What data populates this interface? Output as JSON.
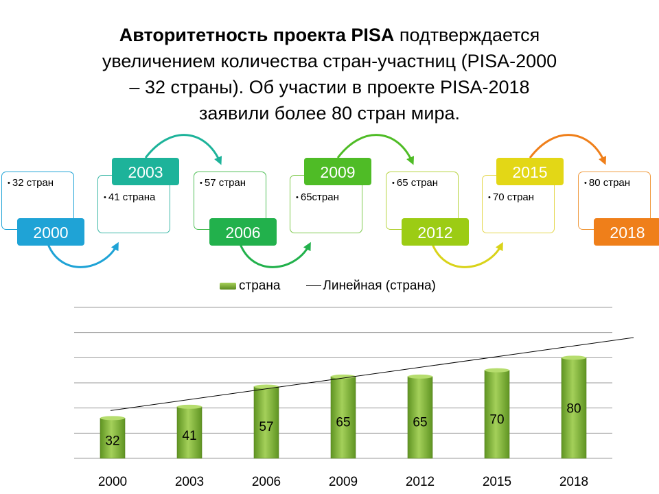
{
  "header": {
    "title_bold": "Авторитетность проекта PISA",
    "title_line1_rest": " подтверждается",
    "title_line2": "увеличением количества стран-участниц (PISA-2000",
    "title_line3": "– 32 страны). Об участии в проекте PISA-2018",
    "title_line4": "заявили более 80 стран мира."
  },
  "timeline": [
    {
      "year": "2000",
      "text": "32 стран",
      "color": "#1fa3d6",
      "edge": "#1fa3d6"
    },
    {
      "year": "2003",
      "text": "41 страна",
      "color": "#1db39a",
      "edge": "#36b6a4"
    },
    {
      "year": "2006",
      "text": "57 стран",
      "color": "#22b14c",
      "edge": "#4cbe54"
    },
    {
      "year": "2009",
      "text": "65стран",
      "color": "#4fbc26",
      "edge": "#7cc84a"
    },
    {
      "year": "2012",
      "text": "65 стран",
      "color": "#9ccc14",
      "edge": "#b6d33e"
    },
    {
      "year": "2015",
      "text": "70 стран",
      "color": "#e3d716",
      "edge": "#e4d64a"
    },
    {
      "year": "2018",
      "text": "80 стран",
      "color": "#ef7f1a",
      "edge": "#f09a3e"
    }
  ],
  "legend": {
    "bar": "страна",
    "line": "Линейная (страна)"
  },
  "chart_data": {
    "type": "bar",
    "categories": [
      "2000",
      "2003",
      "2006",
      "2009",
      "2012",
      "2015",
      "2018"
    ],
    "series": [
      {
        "name": "страна",
        "values": [
          32,
          41,
          57,
          65,
          65,
          70,
          80
        ],
        "color": "#7cb834"
      }
    ],
    "trendline": {
      "name": "Линейная (страна)",
      "type": "linear",
      "start": 38,
      "end": 96
    },
    "ylim": [
      0,
      120
    ],
    "grid": true,
    "legend_position": "top",
    "data_labels": true
  }
}
